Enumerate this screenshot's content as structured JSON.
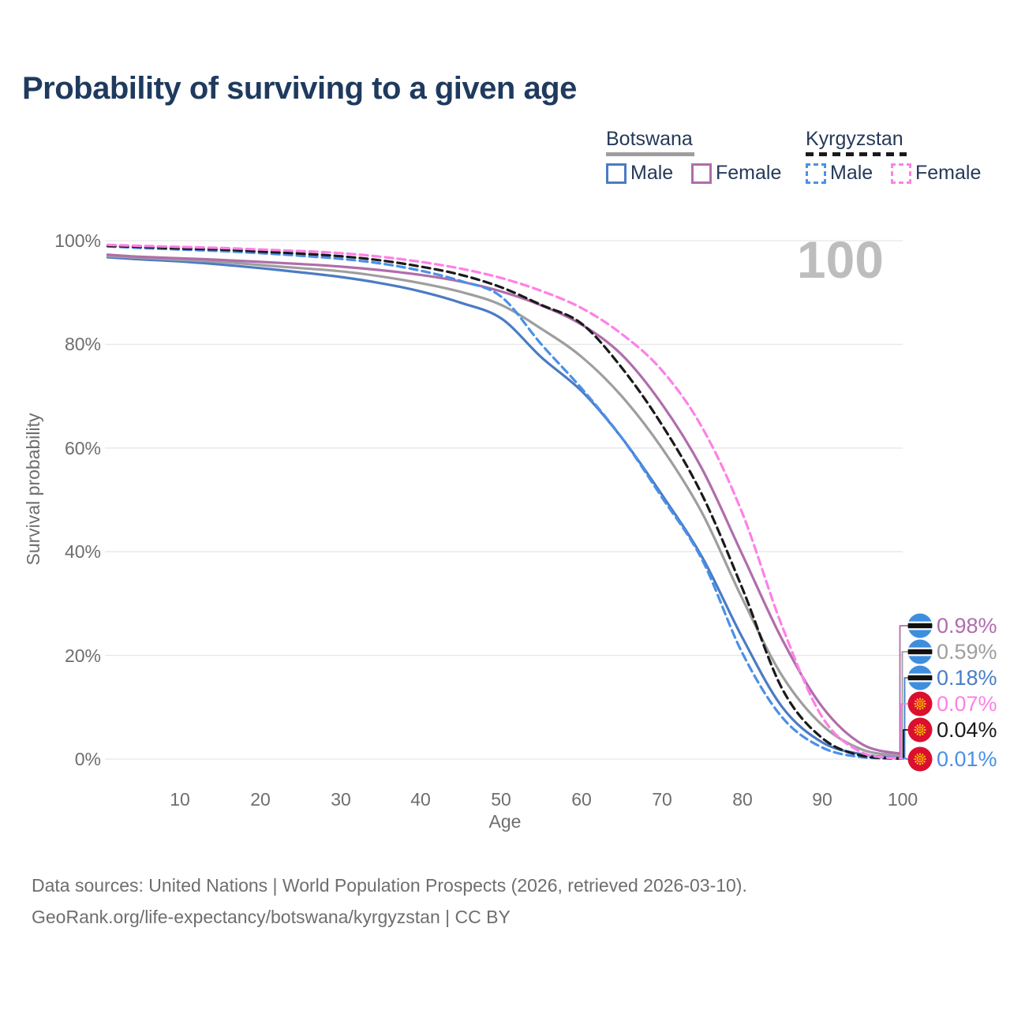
{
  "title": "Probability of surviving to a given age",
  "watermark": "100",
  "legend": {
    "groups": [
      {
        "label": "Botswana",
        "line_style": "solid",
        "line_color": "#9e9e9e",
        "items": [
          {
            "label": "Male",
            "color": "#4b7bc4"
          },
          {
            "label": "Female",
            "color": "#b06dab"
          }
        ]
      },
      {
        "label": "Kyrgyzstan",
        "line_style": "dashed",
        "line_color": "#1a1a1a",
        "items": [
          {
            "label": "Male",
            "color": "#4a90e9"
          },
          {
            "label": "Female",
            "color": "#ff80e5"
          }
        ]
      }
    ]
  },
  "y_axis": {
    "label": "Survival probability",
    "ticks": [
      "100%",
      "80%",
      "60%",
      "40%",
      "20%",
      "0%"
    ]
  },
  "x_axis": {
    "label": "Age",
    "ticks": [
      "10",
      "20",
      "30",
      "40",
      "50",
      "60",
      "70",
      "80",
      "90",
      "100"
    ]
  },
  "end_labels": [
    {
      "value": "0.98%",
      "series": "Botswana Female",
      "flag": "botswana",
      "color": "#b06dab"
    },
    {
      "value": "0.59%",
      "series": "Botswana",
      "flag": "botswana",
      "color": "#9e9e9e"
    },
    {
      "value": "0.18%",
      "series": "Botswana Male",
      "flag": "botswana",
      "color": "#4a7dc9"
    },
    {
      "value": "0.07%",
      "series": "Kyrgyzstan Female",
      "flag": "kyrgyzstan",
      "color": "#ff80e5"
    },
    {
      "value": "0.04%",
      "series": "Kyrgyzstan",
      "flag": "kyrgyzstan",
      "color": "#1a1a1a"
    },
    {
      "value": "0.01%",
      "series": "Kyrgyzstan Male",
      "flag": "kyrgyzstan",
      "color": "#4a90e9"
    }
  ],
  "chart_data": {
    "type": "line",
    "title": "Probability of surviving to a given age",
    "xlabel": "Age",
    "ylabel": "Survival probability",
    "x_range": [
      1,
      100
    ],
    "y_range_percent": [
      0,
      100
    ],
    "grid": "horizontal",
    "legend_position": "top-right",
    "x": [
      1,
      5,
      10,
      15,
      20,
      25,
      30,
      35,
      40,
      45,
      50,
      55,
      60,
      65,
      70,
      75,
      80,
      85,
      90,
      95,
      100
    ],
    "series": [
      {
        "name": "Botswana Male",
        "country": "Botswana",
        "sex": "Male",
        "style": "solid",
        "color": "#4b7bc4",
        "values": [
          96.8,
          96.4,
          96.0,
          95.4,
          94.7,
          93.9,
          93.0,
          91.8,
          90.2,
          88.0,
          85.0,
          77.5,
          71.0,
          62.0,
          51.0,
          39.0,
          23.5,
          10.0,
          3.2,
          0.9,
          0.18
        ]
      },
      {
        "name": "Botswana Female",
        "country": "Botswana",
        "sex": "Female",
        "style": "solid",
        "color": "#b06dab",
        "values": [
          97.3,
          96.9,
          96.6,
          96.3,
          95.9,
          95.5,
          95.0,
          94.3,
          93.4,
          92.1,
          90.2,
          87.5,
          83.8,
          78.0,
          68.5,
          56.0,
          39.5,
          23.0,
          10.0,
          2.8,
          0.98
        ]
      },
      {
        "name": "Botswana",
        "country": "Botswana",
        "sex": "Both",
        "style": "solid",
        "color": "#9e9e9e",
        "values": [
          97.0,
          96.7,
          96.3,
          95.9,
          95.3,
          94.7,
          94.1,
          93.1,
          91.8,
          90.1,
          87.6,
          83.0,
          77.6,
          70.0,
          60.0,
          47.5,
          31.0,
          16.0,
          6.5,
          1.8,
          0.59
        ]
      },
      {
        "name": "Kyrgyzstan Male",
        "country": "Kyrgyzstan",
        "sex": "Male",
        "style": "dashed",
        "color": "#4a90e9",
        "values": [
          98.9,
          98.6,
          98.3,
          98.0,
          97.6,
          97.1,
          96.5,
          95.6,
          94.2,
          92.2,
          89.2,
          80.0,
          71.5,
          62.0,
          50.5,
          38.5,
          20.5,
          8.0,
          2.2,
          0.35,
          0.01
        ]
      },
      {
        "name": "Kyrgyzstan Female",
        "country": "Kyrgyzstan",
        "sex": "Female",
        "style": "dashed",
        "color": "#ff80e5",
        "values": [
          99.2,
          99.0,
          98.8,
          98.6,
          98.3,
          98.0,
          97.6,
          96.9,
          95.9,
          94.6,
          92.8,
          90.3,
          87.0,
          82.0,
          75.0,
          64.0,
          47.5,
          25.5,
          8.0,
          1.2,
          0.07
        ]
      },
      {
        "name": "Kyrgyzstan",
        "country": "Kyrgyzstan",
        "sex": "Both",
        "style": "dashed",
        "color": "#1a1a1a",
        "values": [
          99.0,
          98.8,
          98.5,
          98.3,
          97.9,
          97.5,
          97.0,
          96.2,
          95.0,
          93.4,
          91.0,
          87.6,
          84.0,
          75.5,
          64.5,
          51.0,
          33.0,
          13.5,
          4.0,
          0.6,
          0.04
        ]
      }
    ]
  },
  "footer": {
    "line1": "Data sources: United Nations | World Population Prospects (2026, retrieved 2026-03-10).",
    "line2": "GeoRank.org/life-expectancy/botswana/kyrgyzstan | CC BY"
  }
}
